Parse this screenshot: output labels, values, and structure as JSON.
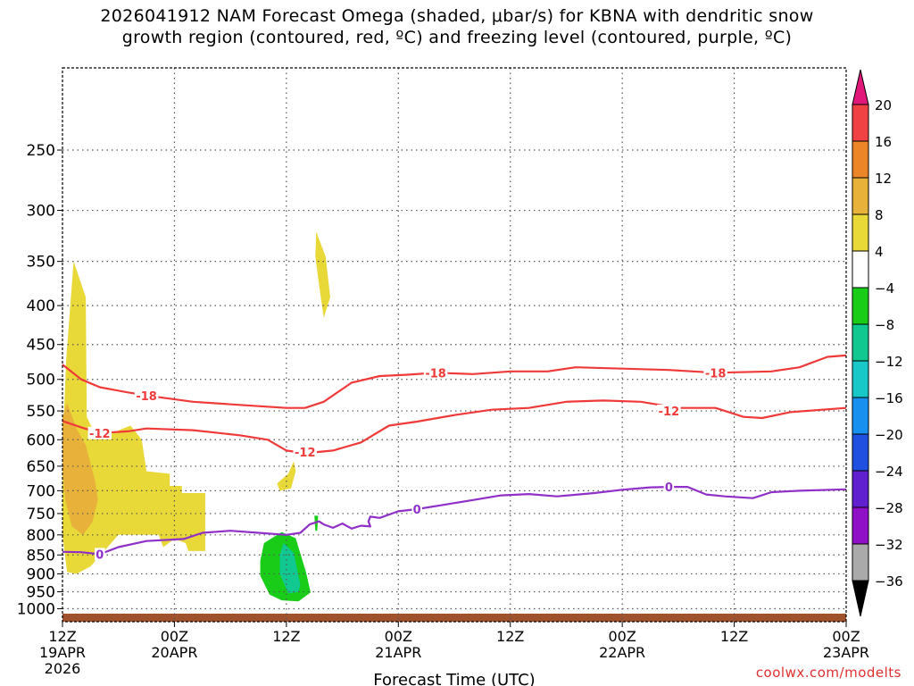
{
  "title": {
    "line1": "2026041912 NAM Forecast Omega (shaded, μbar/s) for KBNA with dendritic snow",
    "line2": "growth region (contoured, red, ºC) and freezing level (contoured, purple, ºC)"
  },
  "credit": "coolwx.com/modelts",
  "chart_data": {
    "type": "heatmap",
    "xlabel": "Forecast Time (UTC)",
    "ylabel": "",
    "y_scale": "log-pressure",
    "ylim_hpa": [
      1040,
      195
    ],
    "xlim_hours": [
      0,
      84
    ],
    "x_ticks": [
      {
        "hour": 0,
        "l1": "12Z",
        "l2": "19APR",
        "l3": "2026"
      },
      {
        "hour": 12,
        "l1": "00Z",
        "l2": "20APR",
        "l3": ""
      },
      {
        "hour": 24,
        "l1": "12Z",
        "l2": "",
        "l3": ""
      },
      {
        "hour": 36,
        "l1": "00Z",
        "l2": "21APR",
        "l3": ""
      },
      {
        "hour": 48,
        "l1": "12Z",
        "l2": "",
        "l3": ""
      },
      {
        "hour": 60,
        "l1": "00Z",
        "l2": "22APR",
        "l3": ""
      },
      {
        "hour": 72,
        "l1": "12Z",
        "l2": "",
        "l3": ""
      },
      {
        "hour": 84,
        "l1": "00Z",
        "l2": "23APR",
        "l3": ""
      }
    ],
    "y_ticks": [
      250,
      300,
      350,
      400,
      450,
      500,
      550,
      600,
      650,
      700,
      750,
      800,
      850,
      900,
      950,
      1000
    ],
    "grid": true,
    "colorbar": {
      "labels": [
        "20",
        "16",
        "12",
        "8",
        "4",
        "−4",
        "−8",
        "−12",
        "−16",
        "−20",
        "−24",
        "−28",
        "−32",
        "−36"
      ],
      "colors": [
        "#e2177a",
        "#f04242",
        "#ec8428",
        "#e8b23a",
        "#e8d838",
        "#ffffff",
        "#18cc18",
        "#10c890",
        "#18c8c8",
        "#1890f0",
        "#2050e0",
        "#6020d0",
        "#9010c8",
        "#aaaaaa",
        "#000000"
      ]
    },
    "omega_regions": [
      {
        "value": "4 to 8",
        "color": "#e8d838",
        "points": [
          [
            0,
            620
          ],
          [
            0.4,
            470
          ],
          [
            1.2,
            350
          ],
          [
            2.5,
            390
          ],
          [
            2.6,
            560
          ],
          [
            3.5,
            590
          ],
          [
            4.3,
            595
          ],
          [
            6.5,
            580
          ],
          [
            7.3,
            575
          ],
          [
            8.5,
            600
          ],
          [
            9,
            660
          ],
          [
            11.5,
            665
          ],
          [
            11.5,
            690
          ],
          [
            12.8,
            690
          ],
          [
            12.8,
            705
          ],
          [
            15.3,
            705
          ],
          [
            15.3,
            840
          ],
          [
            13.5,
            840
          ],
          [
            13.2,
            820
          ],
          [
            12,
            810
          ],
          [
            10.8,
            830
          ],
          [
            10.3,
            800
          ],
          [
            8,
            800
          ],
          [
            6,
            800
          ],
          [
            3,
            880
          ],
          [
            1.5,
            900
          ],
          [
            0.5,
            895
          ],
          [
            0,
            800
          ]
        ]
      },
      {
        "value": "8 to 12",
        "color": "#e8b23a",
        "points": [
          [
            0,
            560
          ],
          [
            0.5,
            537
          ],
          [
            1.5,
            580
          ],
          [
            2.5,
            610
          ],
          [
            3.5,
            680
          ],
          [
            3.8,
            720
          ],
          [
            3.2,
            770
          ],
          [
            2.2,
            800
          ],
          [
            1.0,
            780
          ],
          [
            0.3,
            720
          ],
          [
            0,
            650
          ]
        ]
      },
      {
        "value": "4 to 8",
        "color": "#e8d838",
        "points": [
          [
            24.2,
            665
          ],
          [
            24.8,
            640
          ],
          [
            25.0,
            660
          ],
          [
            24.5,
            695
          ],
          [
            23.3,
            700
          ],
          [
            23.0,
            685
          ]
        ]
      },
      {
        "value": "4 to 8",
        "color": "#e8d838",
        "points": [
          [
            27.2,
            320
          ],
          [
            28.2,
            345
          ],
          [
            28.7,
            390
          ],
          [
            28.0,
            415
          ],
          [
            27.5,
            375
          ],
          [
            27.1,
            345
          ]
        ]
      },
      {
        "value": "-4 to -8",
        "color": "#18cc18",
        "points": [
          [
            21.2,
            865
          ],
          [
            21.6,
            820
          ],
          [
            23.5,
            793
          ],
          [
            25,
            808
          ],
          [
            26.1,
            895
          ],
          [
            26.6,
            952
          ],
          [
            25.3,
            978
          ],
          [
            23.5,
            975
          ],
          [
            22.2,
            958
          ],
          [
            21.2,
            905
          ]
        ]
      },
      {
        "value": "-8 to -12",
        "color": "#10c890",
        "points": [
          [
            23.7,
            820
          ],
          [
            24.8,
            845
          ],
          [
            25.5,
            930
          ],
          [
            25.3,
            950
          ],
          [
            24.2,
            955
          ],
          [
            23.3,
            900
          ],
          [
            23.3,
            850
          ]
        ]
      },
      {
        "value": "-4 to -8",
        "color": "#18cc18",
        "points": [
          [
            27.0,
            755
          ],
          [
            27.4,
            755
          ],
          [
            27.3,
            790
          ],
          [
            27.1,
            790
          ]
        ]
      }
    ],
    "contours": [
      {
        "label": "-18",
        "color": "#f03a3a",
        "label_points": [
          [
            9,
            525
          ],
          [
            40,
            490
          ],
          [
            70,
            490
          ]
        ],
        "points": [
          [
            0,
            478
          ],
          [
            2,
            500
          ],
          [
            4,
            512
          ],
          [
            7,
            520
          ],
          [
            10,
            527
          ],
          [
            14,
            535
          ],
          [
            19,
            540
          ],
          [
            24,
            545
          ],
          [
            26,
            545
          ],
          [
            28,
            535
          ],
          [
            31,
            505
          ],
          [
            34,
            495
          ],
          [
            37,
            493
          ],
          [
            40,
            490
          ],
          [
            44,
            492
          ],
          [
            48,
            488
          ],
          [
            52,
            488
          ],
          [
            55,
            482
          ],
          [
            60,
            484
          ],
          [
            65,
            486
          ],
          [
            70,
            490
          ],
          [
            76,
            488
          ],
          [
            79,
            482
          ],
          [
            82,
            467
          ],
          [
            84,
            465
          ]
        ]
      },
      {
        "label": "-12",
        "color": "#f03a3a",
        "label_points": [
          [
            4,
            588
          ],
          [
            26,
            623
          ],
          [
            65,
            550
          ]
        ],
        "points": [
          [
            0,
            567
          ],
          [
            2,
            578
          ],
          [
            4,
            588
          ],
          [
            7,
            585
          ],
          [
            9,
            580
          ],
          [
            14,
            583
          ],
          [
            19,
            592
          ],
          [
            22,
            600
          ],
          [
            24,
            620
          ],
          [
            26,
            625
          ],
          [
            29,
            620
          ],
          [
            32,
            605
          ],
          [
            35,
            575
          ],
          [
            38,
            568
          ],
          [
            42,
            557
          ],
          [
            46,
            548
          ],
          [
            50,
            545
          ],
          [
            54,
            535
          ],
          [
            58,
            533
          ],
          [
            62,
            535
          ],
          [
            66,
            545
          ],
          [
            70,
            545
          ],
          [
            73,
            560
          ],
          [
            75,
            562
          ],
          [
            78,
            552
          ],
          [
            84,
            545
          ]
        ]
      },
      {
        "label": "0",
        "color": "#9030c8",
        "label_points": [
          [
            4,
            848
          ],
          [
            38,
            740
          ],
          [
            65,
            692
          ]
        ],
        "points": [
          [
            0,
            842
          ],
          [
            2,
            843
          ],
          [
            4,
            848
          ],
          [
            6,
            830
          ],
          [
            9,
            815
          ],
          [
            13,
            810
          ],
          [
            15,
            795
          ],
          [
            18,
            790
          ],
          [
            21,
            795
          ],
          [
            24,
            800
          ],
          [
            25.5,
            795
          ],
          [
            26.5,
            775
          ],
          [
            27.5,
            768
          ],
          [
            28,
            775
          ],
          [
            29,
            783
          ],
          [
            30,
            773
          ],
          [
            31,
            785
          ],
          [
            32,
            778
          ],
          [
            33,
            780
          ],
          [
            32.8,
            768
          ],
          [
            33,
            757
          ],
          [
            34,
            760
          ],
          [
            36,
            745
          ],
          [
            38,
            740
          ],
          [
            41,
            730
          ],
          [
            44,
            720
          ],
          [
            47,
            710
          ],
          [
            50,
            707
          ],
          [
            53,
            712
          ],
          [
            57,
            705
          ],
          [
            60,
            698
          ],
          [
            63,
            693
          ],
          [
            65,
            692
          ],
          [
            67,
            692
          ],
          [
            69,
            708
          ],
          [
            71,
            712
          ],
          [
            74,
            716
          ],
          [
            76,
            703
          ],
          [
            79,
            700
          ],
          [
            84,
            697
          ]
        ]
      }
    ],
    "terrain_top_hpa": 1015
  }
}
